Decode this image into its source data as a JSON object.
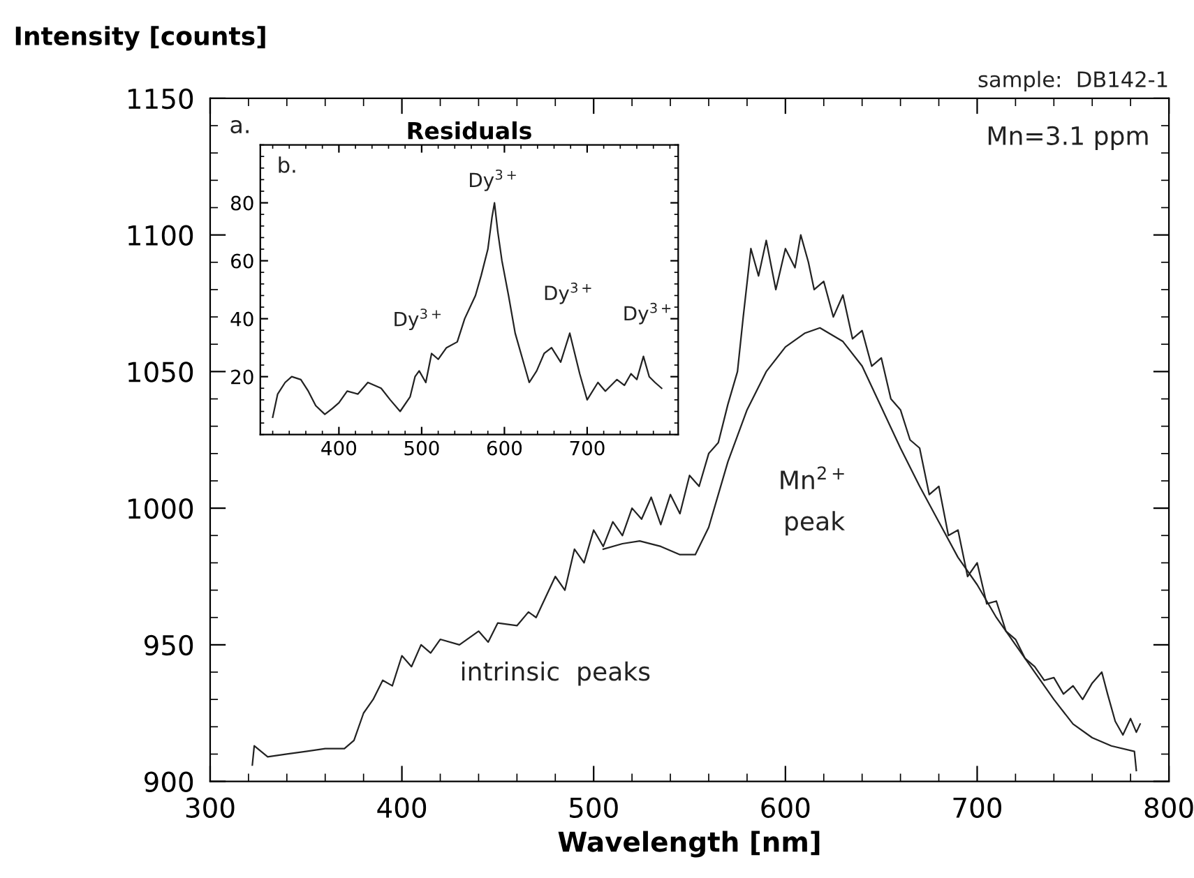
{
  "chart_data": [
    {
      "type": "line",
      "xlabel": "Wavelength [nm]",
      "ylabel": "Intensity [counts]",
      "xlim": [
        300,
        800
      ],
      "xticks": [
        300,
        400,
        500,
        600,
        700,
        800
      ],
      "ylim": [
        900,
        1150
      ],
      "yticks": [
        900,
        950,
        1000,
        1050,
        1100,
        1150
      ],
      "series": [
        {
          "color": "#222222",
          "x": [
            322,
            323,
            330,
            340,
            350,
            360,
            370,
            375,
            380,
            385,
            390,
            395,
            400,
            405,
            410,
            415,
            420,
            430,
            440,
            445,
            450,
            460,
            466,
            470,
            480,
            485,
            490,
            495,
            500,
            505,
            510,
            515,
            520,
            525,
            530,
            535,
            540,
            545,
            550,
            555,
            560,
            565,
            570,
            575,
            578,
            582,
            586,
            590,
            595,
            600,
            605,
            608,
            612,
            615,
            620,
            625,
            630,
            635,
            640,
            645,
            650,
            655,
            660,
            665,
            670,
            675,
            680,
            685,
            690,
            695,
            700,
            705,
            710,
            715,
            720,
            725,
            730,
            735,
            740,
            745,
            750,
            755,
            760,
            765,
            768,
            772,
            776,
            780,
            783,
            785
          ],
          "values": [
            906,
            913,
            909,
            910,
            911,
            912,
            912,
            915,
            925,
            930,
            937,
            935,
            946,
            942,
            950,
            947,
            952,
            950,
            955,
            951,
            958,
            957,
            962,
            960,
            975,
            970,
            985,
            980,
            992,
            986,
            995,
            990,
            1000,
            996,
            1004,
            994,
            1005,
            998,
            1012,
            1008,
            1020,
            1024,
            1038,
            1050,
            1070,
            1095,
            1085,
            1098,
            1080,
            1095,
            1088,
            1100,
            1090,
            1080,
            1083,
            1070,
            1078,
            1062,
            1065,
            1052,
            1055,
            1040,
            1036,
            1025,
            1022,
            1005,
            1008,
            990,
            992,
            975,
            980,
            965,
            966,
            955,
            952,
            945,
            942,
            937,
            938,
            932,
            935,
            930,
            936,
            940,
            932,
            922,
            917,
            923,
            918,
            921
          ]
        },
        {
          "color": "#222222",
          "x": [
            505,
            515,
            524,
            535,
            545,
            553,
            560,
            570,
            580,
            590,
            600,
            610,
            618,
            630,
            640,
            650,
            660,
            670,
            680,
            690,
            700,
            710,
            720,
            730,
            740,
            750,
            760,
            770,
            782,
            783
          ],
          "values": [
            985,
            987,
            988,
            986,
            983,
            983,
            993,
            1017,
            1036,
            1050,
            1059,
            1064,
            1066,
            1061,
            1052,
            1037,
            1022,
            1008,
            995,
            982,
            972,
            960,
            950,
            940,
            930,
            921,
            916,
            913,
            911,
            904
          ]
        }
      ],
      "annotations": [
        "a.",
        "Mn=3.1 ppm",
        "sample:  DB142-1",
        "Mn$^{2+}$",
        "peak",
        "intrinsic  peaks"
      ]
    },
    {
      "type": "line",
      "title": "Residuals",
      "xlim": [
        305,
        810
      ],
      "xticks": [
        400,
        500,
        600,
        700
      ],
      "ylim": [
        0,
        100
      ],
      "yticks": [
        20,
        40,
        60,
        80
      ],
      "series": [
        {
          "color": "#222222",
          "x": [
            320,
            326,
            335,
            343,
            354,
            363,
            372,
            383,
            392,
            400,
            410,
            423,
            435,
            451,
            462,
            474,
            486,
            492,
            497,
            505,
            512,
            520,
            530,
            543,
            552,
            565,
            572,
            580,
            585,
            588,
            592,
            597,
            605,
            613,
            622,
            630,
            639,
            648,
            657,
            668,
            679,
            685,
            691,
            700,
            713,
            722,
            736,
            745,
            753,
            760,
            768,
            775,
            782,
            790
          ],
          "values": [
            6,
            14,
            18,
            20,
            19,
            15,
            10,
            7,
            9,
            11,
            15,
            14,
            18,
            16,
            12,
            8,
            13,
            20,
            22,
            18,
            28,
            26,
            30,
            32,
            40,
            48,
            55,
            64,
            75,
            80,
            70,
            60,
            48,
            35,
            26,
            18,
            22,
            28,
            30,
            25,
            35,
            28,
            21,
            12,
            18,
            15,
            19,
            17,
            21,
            19,
            27,
            20,
            18,
            16
          ]
        }
      ],
      "annotations": [
        "b.",
        "Dy$^{3+}$",
        "Dy$^{3+}$",
        "Dy$^{3+}$",
        "Dy$^{3+}$"
      ]
    }
  ]
}
